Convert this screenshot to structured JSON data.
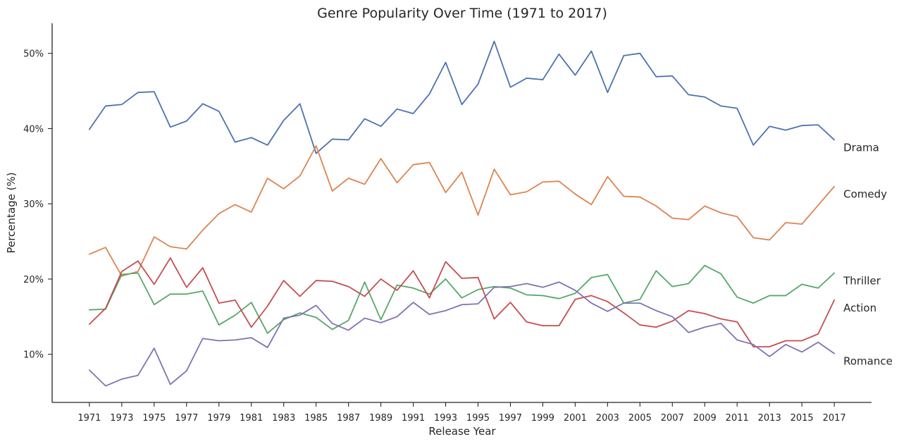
{
  "chart_data": {
    "type": "line",
    "title": "Genre Popularity Over Time (1971 to 2017)",
    "xlabel": "Release Year",
    "ylabel": "Percentage (%)",
    "x": [
      1971,
      1972,
      1973,
      1974,
      1975,
      1976,
      1977,
      1978,
      1979,
      1980,
      1981,
      1982,
      1983,
      1984,
      1985,
      1986,
      1987,
      1988,
      1989,
      1990,
      1991,
      1992,
      1993,
      1994,
      1995,
      1996,
      1997,
      1998,
      1999,
      2000,
      2001,
      2002,
      2003,
      2004,
      2005,
      2006,
      2007,
      2008,
      2009,
      2010,
      2011,
      2012,
      2013,
      2014,
      2015,
      2016,
      2017
    ],
    "xticks": [
      1971,
      1973,
      1975,
      1977,
      1979,
      1981,
      1983,
      1985,
      1987,
      1989,
      1991,
      1993,
      1995,
      1997,
      1999,
      2001,
      2003,
      2005,
      2007,
      2009,
      2011,
      2013,
      2015,
      2017
    ],
    "xlim": [
      1968.7,
      2019.3
    ],
    "yticks": [
      10,
      20,
      30,
      40,
      50
    ],
    "ytick_labels": [
      "10%",
      "20%",
      "30%",
      "40%",
      "50%"
    ],
    "ylim": [
      3.6,
      54.0
    ],
    "grid": false,
    "legend": "none",
    "series": [
      {
        "name": "Drama",
        "color": "#4c72b0",
        "values": [
          39.9,
          43.0,
          43.2,
          44.8,
          44.9,
          40.2,
          41.0,
          43.3,
          42.3,
          38.2,
          38.8,
          37.8,
          41.1,
          43.3,
          36.7,
          38.6,
          38.5,
          41.3,
          40.3,
          42.6,
          42.0,
          44.6,
          48.8,
          43.2,
          45.9,
          51.6,
          45.5,
          46.7,
          46.5,
          49.9,
          47.1,
          50.3,
          44.8,
          49.7,
          50.0,
          46.9,
          47.0,
          44.5,
          44.2,
          43.0,
          42.7,
          37.8,
          40.3,
          39.8,
          40.4,
          40.5,
          38.5
        ]
      },
      {
        "name": "Comedy",
        "color": "#dd8452",
        "values": [
          23.3,
          24.2,
          20.4,
          21.0,
          25.6,
          24.3,
          24.0,
          26.5,
          28.7,
          29.9,
          28.9,
          33.4,
          32.0,
          33.7,
          37.7,
          31.7,
          33.4,
          32.6,
          36.0,
          32.8,
          35.2,
          35.5,
          31.5,
          34.2,
          28.5,
          34.6,
          31.2,
          31.6,
          32.9,
          33.0,
          31.3,
          29.9,
          33.6,
          31.0,
          30.9,
          29.7,
          28.1,
          27.9,
          29.7,
          28.8,
          28.3,
          25.5,
          25.2,
          27.5,
          27.3,
          29.8,
          32.3
        ]
      },
      {
        "name": "Thriller",
        "color": "#55a868",
        "values": [
          15.9,
          16.0,
          20.6,
          20.8,
          16.6,
          18.0,
          18.0,
          18.4,
          13.9,
          15.2,
          16.9,
          12.8,
          14.6,
          15.5,
          14.9,
          13.3,
          14.5,
          19.6,
          14.6,
          19.2,
          18.8,
          18.0,
          20.0,
          17.5,
          18.6,
          19.0,
          18.8,
          17.9,
          17.8,
          17.4,
          18.1,
          20.2,
          20.6,
          16.8,
          17.3,
          21.1,
          19.0,
          19.4,
          21.8,
          20.7,
          17.6,
          16.8,
          17.8,
          17.8,
          19.3,
          18.8,
          20.8
        ]
      },
      {
        "name": "Action",
        "color": "#c44e52",
        "values": [
          14.0,
          16.1,
          21.0,
          22.4,
          19.3,
          22.8,
          18.9,
          21.5,
          16.8,
          17.2,
          13.6,
          16.4,
          19.8,
          17.7,
          19.8,
          19.7,
          19.0,
          17.7,
          20.0,
          18.5,
          21.1,
          17.5,
          22.3,
          20.1,
          20.2,
          14.7,
          16.9,
          14.3,
          13.8,
          13.8,
          17.3,
          17.8,
          17.0,
          15.5,
          13.9,
          13.6,
          14.4,
          15.8,
          15.4,
          14.7,
          14.3,
          11.0,
          11.0,
          11.8,
          11.8,
          12.7,
          17.2
        ]
      },
      {
        "name": "Romance",
        "color": "#8172b3",
        "values": [
          7.9,
          5.8,
          6.7,
          7.2,
          10.8,
          6.0,
          7.8,
          12.1,
          11.8,
          11.9,
          12.2,
          10.9,
          14.8,
          15.2,
          16.5,
          14.1,
          13.2,
          14.8,
          14.2,
          15.0,
          16.9,
          15.3,
          15.8,
          16.6,
          16.7,
          18.9,
          19.0,
          19.4,
          18.9,
          19.6,
          18.5,
          16.8,
          15.7,
          16.8,
          16.8,
          15.8,
          15.0,
          12.9,
          13.6,
          14.1,
          11.9,
          11.3,
          9.7,
          11.3,
          10.3,
          11.6,
          10.1
        ]
      }
    ]
  }
}
